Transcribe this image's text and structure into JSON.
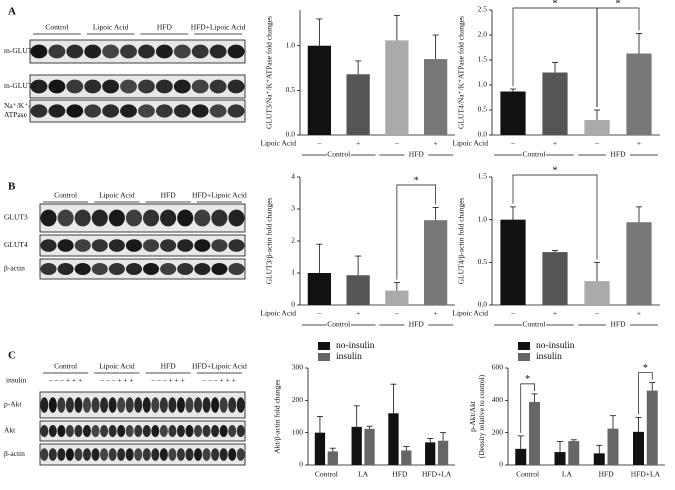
{
  "blots": [
    {
      "panel": "A",
      "groups": [
        "Control",
        "Lipoic Acid",
        "HFD",
        "HFD+Lipoic Acid"
      ],
      "rows": [
        [
          "m-GLUT3"
        ],
        [
          "m-GLUT4"
        ],
        [
          "Na⁺/K⁺-",
          "ATPase"
        ]
      ]
    },
    {
      "panel": "B",
      "groups": [
        "Control",
        "Lipoic Acid",
        "HFD",
        "HFD+Lipoic Acid"
      ],
      "rows": [
        [
          "GLUT3"
        ],
        [
          "GLUT4"
        ],
        [
          "β-actin"
        ]
      ]
    },
    {
      "panel": "C",
      "groups": [
        "Control",
        "Lipoic Acid",
        "HFD",
        "HFD+Lipoic Acid"
      ],
      "treatment_label": "insulin",
      "treatment_signs": [
        "– – – + + +",
        "– – – + + +",
        "– – – + + +",
        "– – – + + +"
      ],
      "rows": [
        [
          "p-Akt"
        ],
        [
          "Akt"
        ],
        [
          "β-actin"
        ]
      ]
    }
  ],
  "chart_data": [
    {
      "type": "bar",
      "y_label": "GLUT3/Na⁺/K⁺ATPase fold changes",
      "categories": [
        "–",
        "+",
        "–",
        "+"
      ],
      "x_row_label": "Lipoic  Acid",
      "groups": [
        "Control",
        "HFD"
      ],
      "values": [
        1.0,
        0.68,
        1.06,
        0.85
      ],
      "errors": [
        0.3,
        0.15,
        0.28,
        0.27
      ],
      "colors": [
        "#111111",
        "#555555",
        "#aaaaaa",
        "#777777"
      ],
      "ylim": [
        0,
        1.4
      ],
      "yticks": [
        {
          "value": 0,
          "label": "0.0"
        },
        0.5,
        {
          "value": 1,
          "label": "1.0"
        }
      ],
      "significance": []
    },
    {
      "type": "bar",
      "y_label": "GLUT4/Na⁺/K⁺ATPase fold changes",
      "categories": [
        "–",
        "+",
        "–",
        "+"
      ],
      "x_row_label": "Lipoic  Acid",
      "groups": [
        "Control",
        "HFD"
      ],
      "values": [
        0.87,
        1.25,
        0.3,
        1.63
      ],
      "errors": [
        0.05,
        0.2,
        0.2,
        0.4
      ],
      "colors": [
        "#111111",
        "#555555",
        "#aaaaaa",
        "#777777"
      ],
      "ylim": [
        0,
        2.5
      ],
      "yticks": [
        {
          "value": 0,
          "label": "0.0"
        },
        0.5,
        {
          "value": 1,
          "label": "1.0"
        },
        1.5,
        {
          "value": 2,
          "label": "2.0"
        },
        2.5
      ],
      "significance": [
        "*",
        "*"
      ]
    },
    {
      "type": "bar",
      "y_label": "GLUT3/β-actin fold changes",
      "categories": [
        "–",
        "+",
        "–",
        "+"
      ],
      "x_row_label": "Lipoic  Acid",
      "groups": [
        "Control",
        "HFD"
      ],
      "values": [
        1.0,
        0.93,
        0.45,
        2.65
      ],
      "errors": [
        0.9,
        0.6,
        0.25,
        0.4
      ],
      "colors": [
        "#111111",
        "#555555",
        "#aaaaaa",
        "#777777"
      ],
      "ylim": [
        0,
        4
      ],
      "yticks": [
        0,
        1,
        2,
        3,
        4
      ],
      "significance": [
        "*"
      ]
    },
    {
      "type": "bar",
      "y_label": "GLUT4/β-actin fold changes",
      "categories": [
        "–",
        "+",
        "–",
        "+"
      ],
      "x_row_label": "Lipoic  Acid",
      "groups": [
        "Control",
        "HFD"
      ],
      "values": [
        1.0,
        0.62,
        0.28,
        0.97
      ],
      "errors": [
        0.15,
        0.02,
        0.22,
        0.18
      ],
      "colors": [
        "#111111",
        "#555555",
        "#aaaaaa",
        "#777777"
      ],
      "ylim": [
        0,
        1.5
      ],
      "yticks": [
        {
          "value": 0,
          "label": "0.0"
        },
        0.5,
        {
          "value": 1,
          "label": "1.0"
        },
        1.5
      ],
      "significance": [
        "*"
      ]
    },
    {
      "type": "bar",
      "y_label": "Akt/β-actin fold changes",
      "categories": [
        "Control",
        "LA",
        "HFD",
        "HFD+LA"
      ],
      "series": [
        {
          "name": "no-insulin",
          "color": "#111111",
          "values": [
            100,
            118,
            160,
            70
          ],
          "errors": [
            50,
            65,
            90,
            12
          ]
        },
        {
          "name": "insulin",
          "color": "#666666",
          "values": [
            42,
            112,
            45,
            75
          ],
          "errors": [
            10,
            8,
            12,
            25
          ]
        }
      ],
      "ylim": [
        0,
        300
      ],
      "yticks": [
        0,
        100,
        200,
        300
      ],
      "significance": []
    },
    {
      "type": "bar",
      "y_label": [
        "p-Akt/Akt",
        "(Density relative to control)"
      ],
      "categories": [
        "Control",
        "LA",
        "HFD",
        "HFD+LA"
      ],
      "series": [
        {
          "name": "no-insulin",
          "color": "#111111",
          "values": [
            100,
            80,
            72,
            205
          ],
          "errors": [
            80,
            65,
            50,
            90
          ]
        },
        {
          "name": "insulin",
          "color": "#666666",
          "values": [
            390,
            148,
            225,
            460
          ],
          "errors": [
            50,
            8,
            80,
            50
          ]
        }
      ],
      "ylim": [
        0,
        600
      ],
      "yticks": [
        0,
        200,
        400,
        600
      ],
      "significance": [
        "*",
        "*"
      ]
    }
  ]
}
